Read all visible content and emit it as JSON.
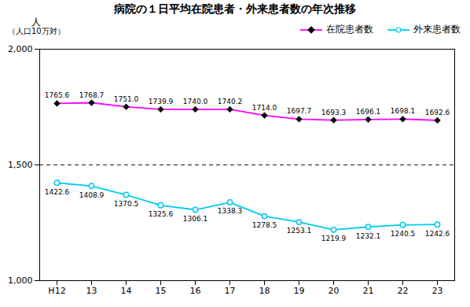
{
  "chart_data": {
    "type": "line",
    "title": "病院の１日平均在院患者・外来患者数の年次推移",
    "ylabel": "人",
    "annotations": [
      "（人口10万対）"
    ],
    "categories": [
      "H12",
      "13",
      "14",
      "15",
      "16",
      "17",
      "18",
      "19",
      "20",
      "21",
      "22",
      "23"
    ],
    "series": [
      {
        "name": "在院患者数",
        "color": "#FF00FF",
        "marker": "diamond",
        "values": [
          1765.6,
          1768.7,
          1751.0,
          1739.9,
          1740.0,
          1740.2,
          1714.0,
          1697.7,
          1693.3,
          1696.1,
          1698.1,
          1692.6
        ],
        "value_labels": [
          "1765.6",
          "1768.7",
          "1751.0",
          "1739.9",
          "1740.0",
          "1740.2",
          "1714.0",
          "1697.7",
          "1693.3",
          "1696.1",
          "1698.1",
          "1692.6"
        ]
      },
      {
        "name": "外来患者数",
        "color": "#00CCEE",
        "marker": "circle",
        "values": [
          1422.6,
          1408.9,
          1370.5,
          1325.6,
          1306.1,
          1338.3,
          1278.5,
          1253.1,
          1219.9,
          1232.1,
          1240.5,
          1242.6
        ],
        "value_labels": [
          "1422.6",
          "1408.9",
          "1370.5",
          "1325.6",
          "1306.1",
          "1338.3",
          "1278.5",
          "1253.1",
          "1219.9",
          "1232.1",
          "1240.5",
          "1242.6"
        ]
      }
    ],
    "hlines": [
      {
        "y": 1500,
        "line_style": "dashed",
        "color": "#000000"
      }
    ],
    "ylim": [
      1000,
      2000
    ],
    "yticks": [
      {
        "value": 1000,
        "label": "1,000"
      },
      {
        "value": 1500,
        "label": "1,500"
      },
      {
        "value": 2000,
        "label": "2,000"
      }
    ],
    "grid": false,
    "legend": "top",
    "data_labels": true
  }
}
